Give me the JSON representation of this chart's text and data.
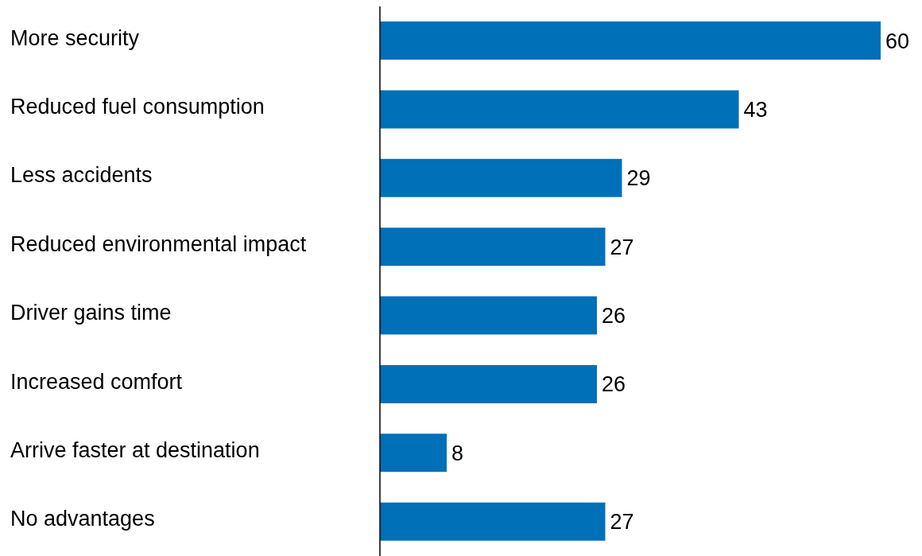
{
  "chart_data": {
    "type": "bar",
    "orientation": "horizontal",
    "categories": [
      "More security",
      "Reduced fuel consumption",
      "Less accidents",
      "Reduced environmental impact",
      "Driver gains time",
      "Increased comfort",
      "Arrive faster at destination",
      "No advantages"
    ],
    "values": [
      60,
      43,
      29,
      27,
      26,
      26,
      8,
      27
    ],
    "color": "#0070b8",
    "data_labels": true
  }
}
